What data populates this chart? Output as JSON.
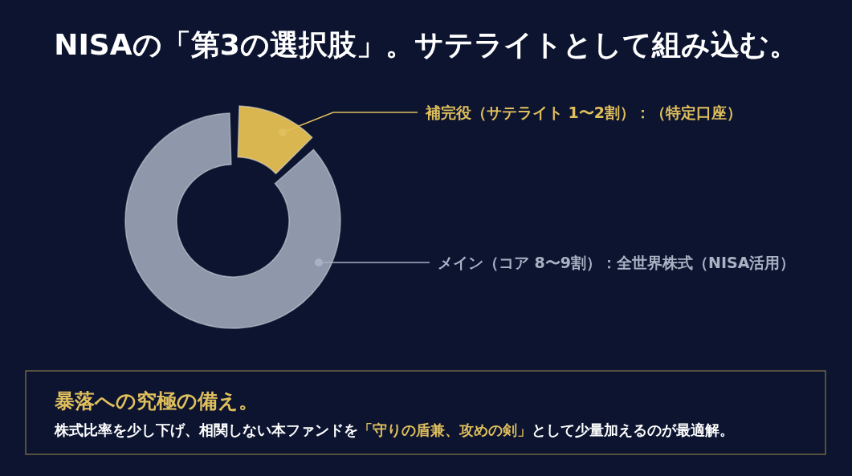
{
  "chart_data": {
    "type": "donut",
    "title": "NISAの「第3の選択肢」。サテライトとして組み込む。",
    "categories": [
      "補完役（サテライト 1〜2割）：（特定口座）",
      "メイン（コア 8〜9割）：全世界株式（NISA活用）"
    ],
    "values": [
      13,
      87
    ],
    "colors": [
      "#d9b650",
      "#8e98aa"
    ],
    "annotations": [
      "暴落への究極の備え。",
      "株式比率を少し下げ、相関しない本ファンドを",
      "「守りの盾兼、攻めの剣」",
      "として少量加えるのが最適解。"
    ]
  }
}
